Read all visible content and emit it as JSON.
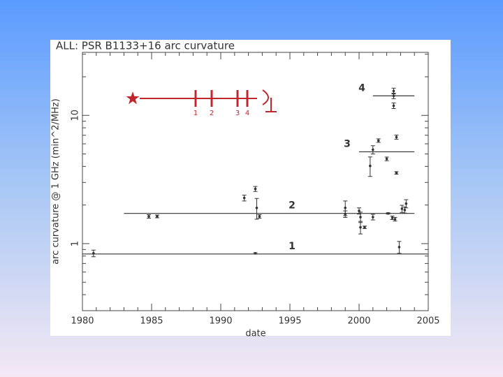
{
  "chart_data": {
    "type": "scatter",
    "title": "ALL:  PSR B1133+16 arc curvature",
    "x_label": "date",
    "y_label": "arc curvature @ 1 GHz (min^2/MHz)",
    "log_y": true,
    "color": "#333333",
    "xlim": [
      1980,
      2005
    ],
    "xticks": [
      1980,
      1985,
      1990,
      1995,
      2000,
      2005
    ],
    "xminor_ticks": [
      1981,
      1982,
      1983,
      1984,
      1986,
      1987,
      1988,
      1989,
      1991,
      1992,
      1993,
      1994,
      1996,
      1997,
      1998,
      1999,
      2001,
      2002,
      2003,
      2004
    ],
    "ylim": [
      0.3,
      31
    ],
    "yticks": [
      1,
      10
    ],
    "yminor_ticks": [
      0.3,
      0.4,
      0.5,
      0.6,
      0.7,
      0.8,
      0.9,
      2,
      3,
      4,
      5,
      6,
      7,
      8,
      9,
      20,
      30
    ],
    "x": [
      1980.8,
      1984.8,
      1985.4,
      1991.7,
      1992.5,
      1992.6,
      1992.8,
      1992.5,
      1999.0,
      1999.0,
      2000.0,
      2000.1,
      2000.1,
      2000.4,
      2000.8,
      2001.0,
      2001.0,
      2001.4,
      2002.0,
      2002.1,
      2002.4,
      2002.6,
      2002.5,
      2002.5,
      2002.5,
      2002.7,
      2002.7,
      2002.9,
      2003.1,
      2003.4,
      2003.3
    ],
    "values": [
      0.84,
      1.63,
      1.63,
      2.27,
      2.67,
      1.9,
      1.63,
      0.84,
      1.9,
      1.7,
      1.8,
      1.61,
      1.34,
      1.34,
      4.04,
      5.4,
      1.61,
      6.36,
      4.58,
      1.72,
      1.59,
      1.55,
      15.5,
      14.2,
      11.9,
      6.77,
      3.56,
      0.94,
      1.87,
      2.05,
      1.83
    ],
    "errors": [
      0.05,
      0.05,
      0.04,
      0.12,
      0.12,
      0.35,
      0.05,
      0.01,
      0.25,
      0.1,
      0.1,
      0.15,
      0.15,
      0.03,
      0.7,
      0.4,
      0.08,
      0.2,
      0.15,
      0.02,
      0.05,
      0.05,
      0.8,
      0.7,
      0.6,
      0.25,
      0.08,
      0.1,
      0.12,
      0.15,
      0.1
    ],
    "levels": [
      {
        "label": "1",
        "value": 0.83,
        "x": [
          1980,
          2005
        ]
      },
      {
        "label": "2",
        "value": 1.72,
        "x": [
          1983,
          2004
        ]
      },
      {
        "label": "3",
        "value": 5.2,
        "x": [
          2000,
          2004
        ]
      },
      {
        "label": "4",
        "value": 14.2,
        "x": [
          2001,
          2004
        ]
      }
    ],
    "inset": {
      "color": "#c0272d",
      "labels": [
        "1",
        "2",
        "3",
        "4"
      ]
    }
  }
}
